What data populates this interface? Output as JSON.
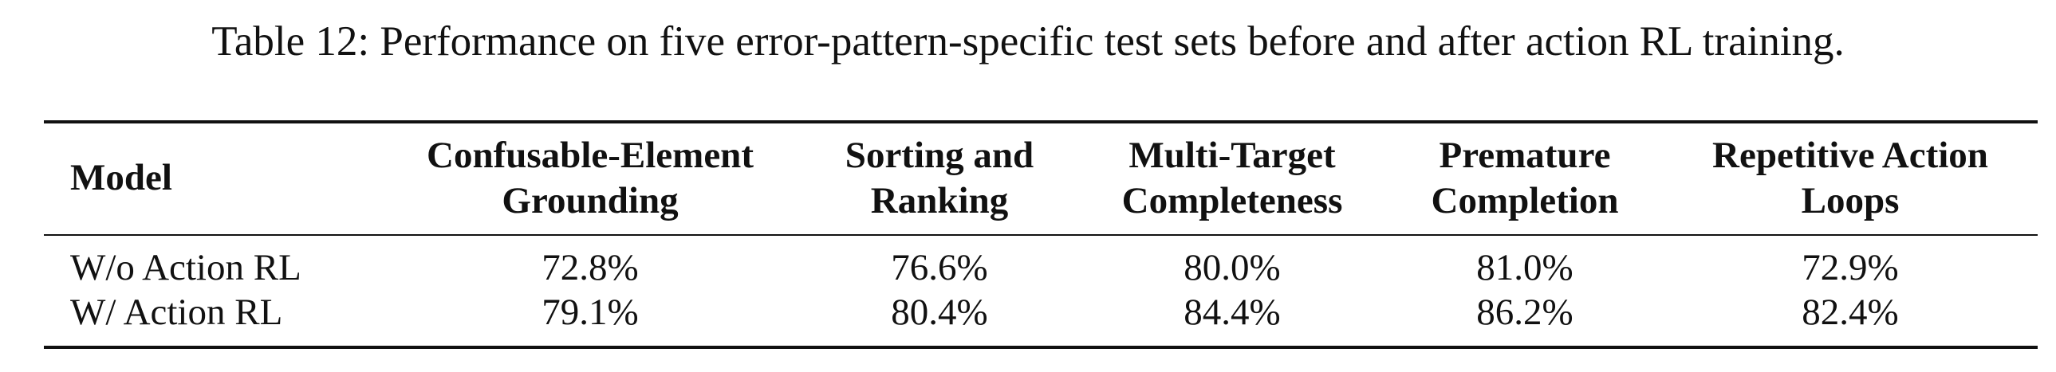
{
  "caption": "Table 12: Performance on five error-pattern-specific test sets before and after action RL training.",
  "table": {
    "header": [
      [
        "Model"
      ],
      [
        "Confusable-Element",
        "Grounding"
      ],
      [
        "Sorting and",
        "Ranking"
      ],
      [
        "Multi-Target",
        "Completeness"
      ],
      [
        "Premature",
        "Completion"
      ],
      [
        "Repetitive Action",
        "Loops"
      ]
    ],
    "rows": [
      [
        "W/o Action RL",
        "72.8%",
        "76.6%",
        "80.0%",
        "81.0%",
        "72.9%"
      ],
      [
        "W/ Action RL",
        "79.1%",
        "80.4%",
        "84.4%",
        "86.2%",
        "82.4%"
      ]
    ]
  }
}
